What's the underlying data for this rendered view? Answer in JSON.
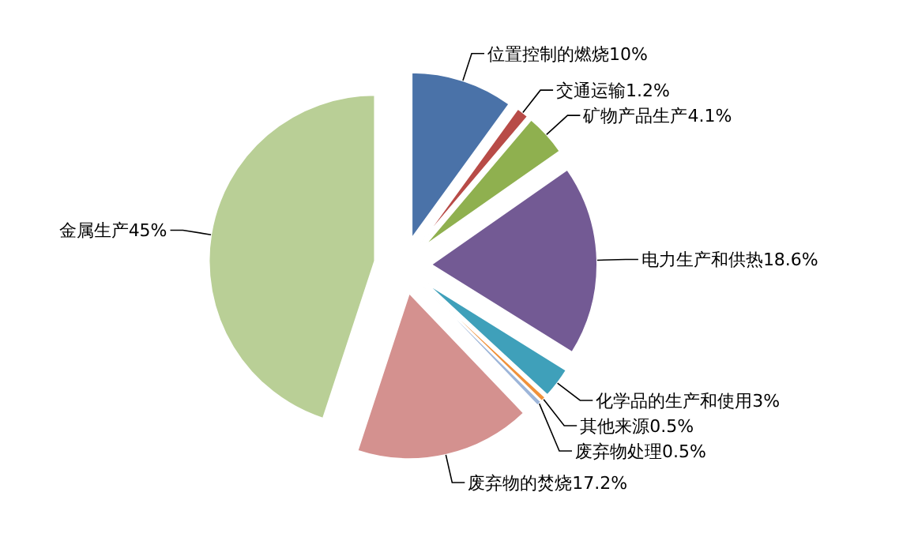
{
  "chart_data": {
    "type": "pie",
    "categories": [
      "位置控制的燃烧",
      "交通运输",
      "矿物产品生产",
      "电力生产和供热",
      "化学品的生产和使用",
      "其他来源",
      "废弃物处理",
      "废弃物的焚烧",
      "金属生产"
    ],
    "values": [
      10,
      1.2,
      4.1,
      18.6,
      3,
      0.5,
      0.5,
      17.2,
      45
    ],
    "value_labels": [
      "10%",
      "1.2%",
      "4.1%",
      "18.6%",
      "3%",
      "0.5%",
      "0.5%",
      "17.2%",
      "45%"
    ],
    "colors": [
      "#4a72a8",
      "#b84b47",
      "#8fb04f",
      "#735a94",
      "#3fa0ba",
      "#f0913a",
      "#9db5d9",
      "#d4918f",
      "#b9cf96"
    ]
  }
}
